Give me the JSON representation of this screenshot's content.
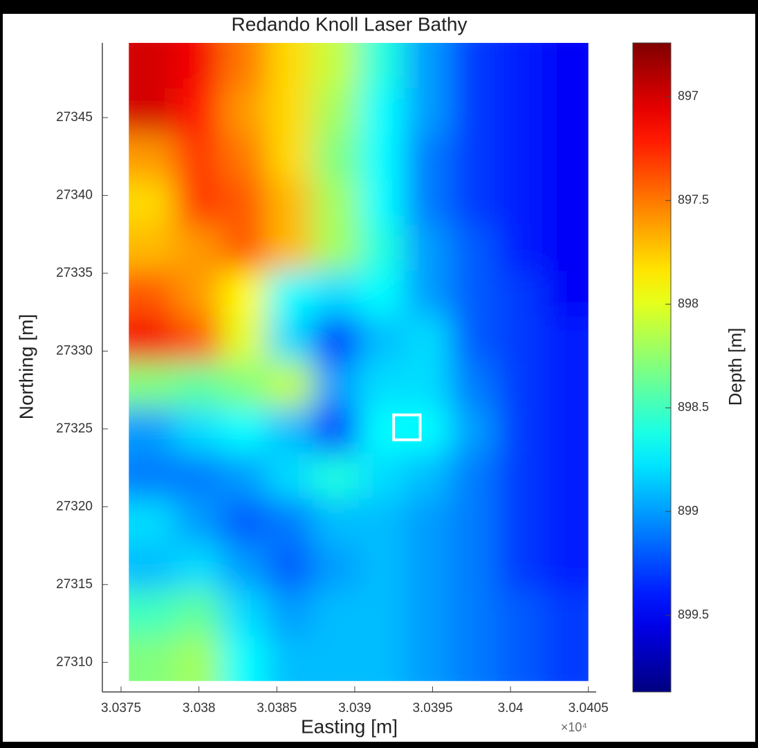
{
  "chart_data": {
    "type": "heatmap",
    "title": "Redando Knoll Laser Bathy",
    "xlabel": "Easting [m]",
    "ylabel": "Northing [m]",
    "x_scale_label": "×10⁴",
    "xlim": [
      3.03738,
      3.04055
    ],
    "ylim": [
      27308.1,
      27349.8
    ],
    "xticks": [
      3.0375,
      3.038,
      3.0385,
      3.039,
      3.0395,
      3.04,
      3.0405
    ],
    "yticks": [
      27310,
      27315,
      27320,
      27325,
      27330,
      27335,
      27340,
      27345
    ],
    "z_extent": {
      "x": [
        3.03755,
        3.0405
      ],
      "y": [
        27308.8,
        27349.8
      ]
    },
    "colormap": "jet",
    "colorbar": {
      "label": "Depth [m]",
      "lim": [
        896.74,
        899.87
      ],
      "reversed": true,
      "ticks": [
        897,
        897.5,
        898,
        898.5,
        899,
        899.5
      ]
    },
    "highlight_box": {
      "x": [
        3.03925,
        3.03942
      ],
      "y": [
        27324.3,
        27325.9
      ]
    },
    "z": [
      [
        897.0,
        897.1,
        897.5,
        897.8,
        898.1,
        898.6,
        899.0,
        899.3,
        899.4,
        899.5
      ],
      [
        897.0,
        897.2,
        897.6,
        897.8,
        898.2,
        898.7,
        899.0,
        899.3,
        899.4,
        899.5
      ],
      [
        897.6,
        897.3,
        897.5,
        897.8,
        898.3,
        898.7,
        899.1,
        899.3,
        899.4,
        899.5
      ],
      [
        897.8,
        897.3,
        897.4,
        897.7,
        898.2,
        898.7,
        899.1,
        899.3,
        899.4,
        899.5
      ],
      [
        897.7,
        897.6,
        897.4,
        897.7,
        898.2,
        898.6,
        899.0,
        899.2,
        899.4,
        899.5
      ],
      [
        897.4,
        897.6,
        897.9,
        898.7,
        898.8,
        898.7,
        899.0,
        899.2,
        899.3,
        899.5
      ],
      [
        897.1,
        897.4,
        898.0,
        898.8,
        899.3,
        898.9,
        898.8,
        899.2,
        899.3,
        899.4
      ],
      [
        898.3,
        898.4,
        898.3,
        898.1,
        899.0,
        898.8,
        898.8,
        899.1,
        899.3,
        899.4
      ],
      [
        899.0,
        898.8,
        898.7,
        898.9,
        899.3,
        898.7,
        898.7,
        899.0,
        899.3,
        899.4
      ],
      [
        899.1,
        899.1,
        899.0,
        898.8,
        898.6,
        898.8,
        898.9,
        899.1,
        899.3,
        899.4
      ],
      [
        898.8,
        899.0,
        899.2,
        899.1,
        898.9,
        898.9,
        899.0,
        899.1,
        899.3,
        899.4
      ],
      [
        898.9,
        898.8,
        899.0,
        899.2,
        899.0,
        898.9,
        899.0,
        899.1,
        899.3,
        899.4
      ],
      [
        898.5,
        898.4,
        898.8,
        899.0,
        898.9,
        898.9,
        899.0,
        899.1,
        899.2,
        899.3
      ],
      [
        898.3,
        898.2,
        898.7,
        898.9,
        898.9,
        898.9,
        899.0,
        899.1,
        899.2,
        899.3
      ]
    ]
  }
}
